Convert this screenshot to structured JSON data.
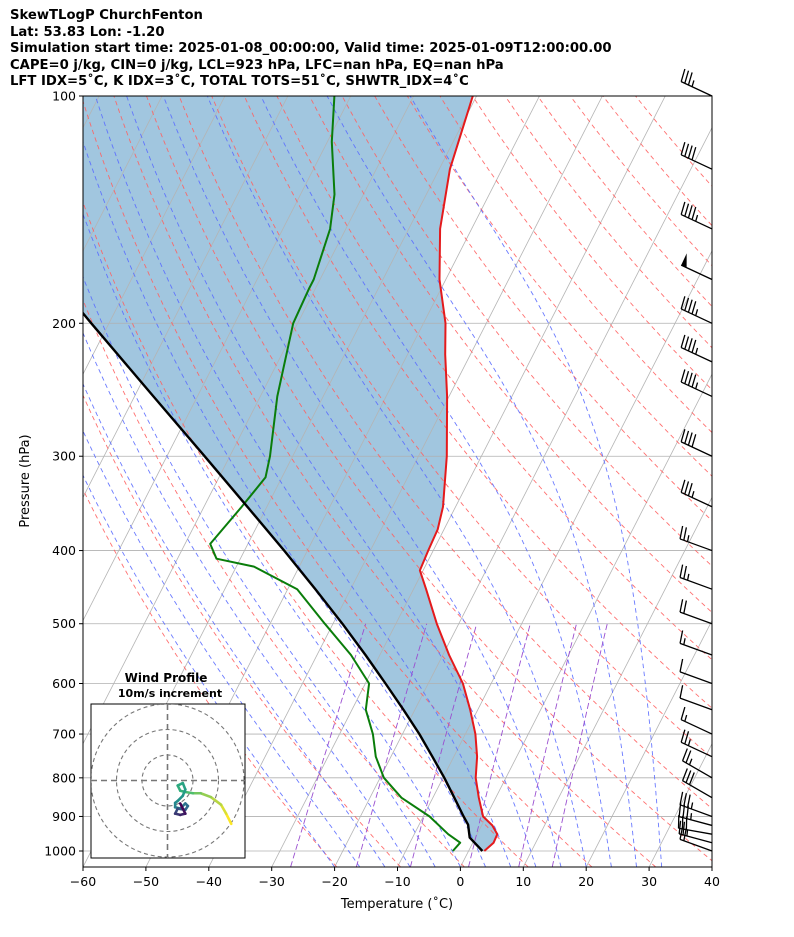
{
  "header": {
    "title": "SkewTLogP ChurchFenton",
    "location": "Lat: 53.83   Lon: -1.20",
    "times": "Simulation start time: 2025-01-08_00:00:00, Valid time: 2025-01-09T12:00:00.00",
    "params": "CAPE=0 j/kg, CIN=0 j/kg, LCL=923 hPa, LFC=nan hPa, EQ=nan hPa",
    "indices": "LFT IDX=5˚C, K IDX=3˚C, TOTAL TOTS=51˚C, SHWTR_IDX=4˚C"
  },
  "chart_data": {
    "type": "line",
    "subtype": "skew-t log-p",
    "xlabel": "Temperature (˚C)",
    "ylabel": "Pressure (hPa)",
    "xlim": [
      -60,
      40
    ],
    "ylim": [
      1050,
      100
    ],
    "x_ticks": [
      -60,
      -50,
      -40,
      -30,
      -20,
      -10,
      0,
      10,
      20,
      30,
      40
    ],
    "x_tick_labels": [
      "−60",
      "−50",
      "−40",
      "−30",
      "−20",
      "−10",
      "0",
      "10",
      "20",
      "30",
      "40"
    ],
    "y_ticks": [
      1000,
      900,
      800,
      700,
      600,
      500,
      400,
      300,
      200,
      100
    ],
    "y_tick_labels": [
      "1000",
      "900",
      "800",
      "700",
      "600",
      "500",
      "400",
      "300",
      "200",
      "100"
    ],
    "grid": true,
    "colors": {
      "temperature": "#e41a1c",
      "dewpoint": "#0a7d0a",
      "parcel": "#000000",
      "shading": "#a1c6df",
      "dry_adiabat": "#ff6060",
      "moist_adiabat": "#5a6cff",
      "mixing_ratio": "#9a4fd0",
      "isotherm": "#b4b4b4"
    },
    "series": [
      {
        "name": "Temperature",
        "points": [
          [
            2.5,
            1000
          ],
          [
            3.3,
            975
          ],
          [
            3.2,
            950
          ],
          [
            1.7,
            925
          ],
          [
            -0.5,
            900
          ],
          [
            -2.7,
            850
          ],
          [
            -4.8,
            800
          ],
          [
            -6.3,
            750
          ],
          [
            -8.4,
            700
          ],
          [
            -11.2,
            650
          ],
          [
            -14.5,
            600
          ],
          [
            -19.0,
            550
          ],
          [
            -23.5,
            500
          ],
          [
            -28.0,
            450
          ],
          [
            -30.5,
            425
          ],
          [
            -30.8,
            400
          ],
          [
            -31.0,
            375
          ],
          [
            -32.0,
            350
          ],
          [
            -35.5,
            300
          ],
          [
            -40.3,
            250
          ],
          [
            -44.0,
            220
          ],
          [
            -46.5,
            200
          ],
          [
            -51.0,
            175
          ],
          [
            -55.0,
            150
          ],
          [
            -58.3,
            125
          ],
          [
            -60.6,
            100
          ]
        ]
      },
      {
        "name": "Dewpoint",
        "points": [
          [
            -2.5,
            1000
          ],
          [
            -2.0,
            975
          ],
          [
            -4.6,
            950
          ],
          [
            -9.0,
            900
          ],
          [
            -15.0,
            850
          ],
          [
            -19.4,
            800
          ],
          [
            -22.4,
            750
          ],
          [
            -24.7,
            700
          ],
          [
            -27.8,
            650
          ],
          [
            -29.4,
            600
          ],
          [
            -34.6,
            550
          ],
          [
            -41.3,
            500
          ],
          [
            -48.5,
            450
          ],
          [
            -57.2,
            420
          ],
          [
            -63.8,
            410
          ],
          [
            -66.0,
            392
          ],
          [
            -64.0,
            350
          ],
          [
            -62.6,
            320
          ],
          [
            -63.6,
            300
          ],
          [
            -67.3,
            250
          ],
          [
            -70.7,
            200
          ],
          [
            -71.0,
            180
          ],
          [
            -71.0,
            175
          ],
          [
            -72.5,
            150
          ],
          [
            -74.6,
            135
          ],
          [
            -79.3,
            115
          ],
          [
            -82.6,
            100
          ]
        ]
      },
      {
        "name": "Parcel",
        "points": [
          [
            2.2,
            1000
          ],
          [
            -0.9,
            960
          ],
          [
            -2.2,
            923
          ],
          [
            -3.6,
            900
          ],
          [
            -6.6,
            850
          ],
          [
            -9.8,
            800
          ],
          [
            -13.4,
            750
          ],
          [
            -17.3,
            700
          ],
          [
            -21.8,
            650
          ],
          [
            -26.8,
            600
          ],
          [
            -32.3,
            550
          ],
          [
            -38.5,
            500
          ],
          [
            -45.6,
            450
          ],
          [
            -53.7,
            400
          ],
          [
            -63.1,
            350
          ],
          [
            -74.0,
            300
          ],
          [
            -87.0,
            250
          ],
          [
            -102.8,
            200
          ],
          [
            -122.8,
            150
          ],
          [
            -150.5,
            100
          ]
        ]
      }
    ],
    "wind_barbs": {
      "pressures": [
        1000,
        975,
        950,
        925,
        900,
        850,
        800,
        750,
        700,
        650,
        600,
        550,
        500,
        450,
        400,
        350,
        300,
        250,
        225,
        200,
        175,
        150,
        125,
        100
      ],
      "direction_deg": [
        290,
        285,
        280,
        285,
        290,
        300,
        300,
        295,
        295,
        290,
        290,
        290,
        290,
        290,
        290,
        295,
        295,
        295,
        295,
        295,
        295,
        295,
        295,
        295
      ],
      "speed_kt": [
        20,
        25,
        30,
        35,
        35,
        30,
        25,
        25,
        15,
        10,
        10,
        15,
        20,
        25,
        25,
        35,
        40,
        45,
        45,
        45,
        50,
        45,
        40,
        35
      ]
    },
    "hodograph": {
      "title": "Wind Profile",
      "subtitle": "10m/s increment",
      "rings_ms": [
        10,
        20,
        30
      ],
      "path_ms": [
        [
          25,
          -17
        ],
        [
          23,
          -13
        ],
        [
          21,
          -9.5
        ],
        [
          17,
          -6.5
        ],
        [
          13,
          -5
        ],
        [
          10,
          -5
        ],
        [
          7,
          -4.5
        ],
        [
          5,
          -4
        ],
        [
          4,
          -2
        ],
        [
          6,
          -1
        ],
        [
          7,
          -3.5
        ],
        [
          6,
          -6
        ],
        [
          4,
          -8
        ],
        [
          3,
          -8.8
        ],
        [
          3,
          -10.5
        ],
        [
          5,
          -11
        ],
        [
          7,
          -9
        ],
        [
          8,
          -10
        ],
        [
          7,
          -11.5
        ],
        [
          4,
          -11
        ],
        [
          3,
          -13
        ],
        [
          5,
          -13.5
        ],
        [
          7,
          -13
        ],
        [
          6,
          -11
        ],
        [
          5,
          -9
        ]
      ]
    }
  }
}
